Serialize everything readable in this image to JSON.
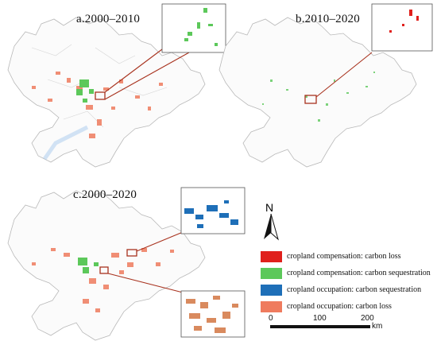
{
  "panels": {
    "a": {
      "label": "a.2000–2010"
    },
    "b": {
      "label": "b.2010–2020"
    },
    "c": {
      "label": "c.2000–2020"
    }
  },
  "north_arrow": {
    "letter": "N"
  },
  "legend": [
    {
      "label": "cropland compensation: carbon loss",
      "color": "#e0201c"
    },
    {
      "label": "cropland compensation: carbon sequestration",
      "color": "#5cc85a"
    },
    {
      "label": "cropland occupation: carbon sequestration",
      "color": "#1e6fb8"
    },
    {
      "label": "cropland occupation: carbon loss",
      "color": "#ef7b5e"
    }
  ],
  "scale_bar": {
    "ticks": [
      "0",
      "100",
      "200"
    ],
    "unit": "km"
  },
  "colors": {
    "boundary": "#b9b9b9",
    "leader": "#a8321e",
    "inset_frame": "#555555"
  }
}
